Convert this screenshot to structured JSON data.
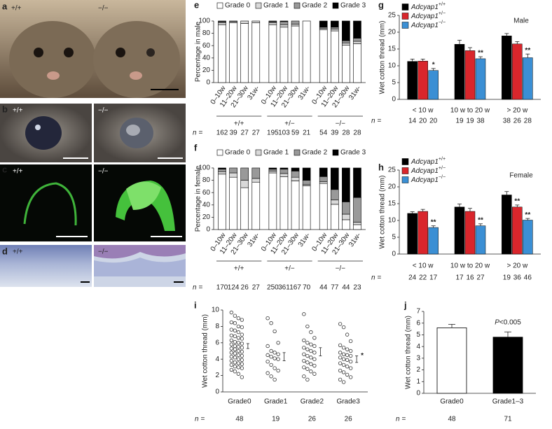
{
  "photos": [
    {
      "letter": "a",
      "labels": [
        "+/+",
        "−/−"
      ]
    },
    {
      "letter": "b",
      "labels": [
        "+/+",
        "−/−"
      ]
    },
    {
      "letter": "c",
      "labels": [
        "+/+",
        "−/−"
      ]
    },
    {
      "letter": "d",
      "labels": [
        "+/+",
        "−/−"
      ]
    }
  ],
  "chart_data": [
    {
      "letter": "e",
      "type": "bar",
      "stacked": true,
      "ylabel": "Percentage in male",
      "categories": [
        "0–10w",
        "11–20w",
        "21–30w",
        "31w-",
        "0–10w",
        "11–20w",
        "21–30w",
        "31w-",
        "0–10w",
        "11–20w",
        "21–30w",
        "31w-"
      ],
      "group_labels": [
        "+/+",
        "+/−",
        "−/−"
      ],
      "n_label": "n =",
      "n": [
        162,
        39,
        27,
        27,
        195,
        103,
        59,
        21,
        54,
        39,
        28,
        28
      ],
      "series": [
        {
          "name": "Grade 0",
          "color": "#ffffff",
          "values": [
            94,
            97,
            96,
            97,
            94,
            90,
            92,
            100,
            86,
            84,
            61,
            63
          ]
        },
        {
          "name": "Grade 1",
          "color": "#d9d9d9",
          "values": [
            3,
            2,
            4,
            3,
            3,
            4,
            3,
            0,
            2,
            3,
            3,
            4
          ]
        },
        {
          "name": "Grade 2",
          "color": "#999999",
          "values": [
            2,
            1,
            0,
            0,
            2,
            5,
            5,
            0,
            2,
            3,
            4,
            5
          ]
        },
        {
          "name": "Grade 3",
          "color": "#000000",
          "values": [
            1,
            0,
            0,
            0,
            1,
            1,
            0,
            0,
            10,
            10,
            32,
            28
          ]
        }
      ],
      "ylim": [
        0,
        100
      ],
      "yticks": [
        0,
        20,
        40,
        60,
        80,
        100
      ]
    },
    {
      "letter": "f",
      "type": "bar",
      "stacked": true,
      "ylabel": "Percentage in female",
      "categories": [
        "0–10w",
        "11–20w",
        "21–30w",
        "31w-",
        "0–10w",
        "11–20w",
        "21–30w",
        "31w-",
        "0–10w",
        "11–20w",
        "21–30w",
        "31w-"
      ],
      "group_labels": [
        "+/+",
        "+/−",
        "−/−"
      ],
      "n_label": "n =",
      "n": [
        170,
        124,
        26,
        27,
        250,
        361,
        167,
        70,
        44,
        77,
        44,
        23
      ],
      "series": [
        {
          "name": "Grade 0",
          "color": "#ffffff",
          "values": [
            90,
            85,
            68,
            77,
            92,
            86,
            79,
            71,
            75,
            41,
            16,
            8
          ]
        },
        {
          "name": "Grade 1",
          "color": "#d9d9d9",
          "values": [
            4,
            7,
            12,
            6,
            3,
            5,
            6,
            2,
            3,
            7,
            9,
            4
          ]
        },
        {
          "name": "Grade 2",
          "color": "#999999",
          "values": [
            4,
            8,
            20,
            17,
            3,
            7,
            10,
            7,
            8,
            17,
            20,
            40
          ]
        },
        {
          "name": "Grade 3",
          "color": "#000000",
          "values": [
            2,
            0,
            0,
            0,
            2,
            2,
            5,
            20,
            14,
            35,
            55,
            48
          ]
        }
      ],
      "ylim": [
        0,
        100
      ],
      "yticks": [
        0,
        20,
        40,
        60,
        80,
        100
      ]
    },
    {
      "letter": "g",
      "type": "bar",
      "title": "Male",
      "ylabel": "Wet cotton thread (mm)",
      "categories": [
        "< 10 w",
        "10 w to 20 w",
        "> 20 w"
      ],
      "n_label": "n =",
      "n": [
        14,
        20,
        20,
        19,
        19,
        38,
        38,
        26,
        28
      ],
      "series": [
        {
          "name": "Adcyap1",
          "superscript": "+/+",
          "color": "#000000",
          "values": [
            11.3,
            16.4,
            18.9
          ],
          "errors": [
            0.7,
            1.2,
            0.7
          ],
          "stars": [
            null,
            null,
            null
          ]
        },
        {
          "name": "Adcyap1",
          "superscript": "+/−",
          "color": "#d9262c",
          "values": [
            11.4,
            14.5,
            16.5
          ],
          "errors": [
            0.6,
            0.9,
            0.7
          ],
          "stars": [
            null,
            null,
            null
          ]
        },
        {
          "name": "Adcyap1",
          "superscript": "−/−",
          "color": "#3b8fd4",
          "values": [
            8.6,
            12.1,
            12.4
          ],
          "errors": [
            0.6,
            0.6,
            1.1
          ],
          "stars": [
            "*",
            "**",
            "**"
          ]
        }
      ],
      "ylim": [
        0,
        25
      ],
      "yticks": [
        0,
        5,
        10,
        15,
        20,
        25
      ]
    },
    {
      "letter": "h",
      "type": "bar",
      "title": "Female",
      "ylabel": "Wet cotton thread (mm)",
      "categories": [
        "< 10 w",
        "10 w to 20 w",
        "> 20 w"
      ],
      "n_label": "n =",
      "n": [
        24,
        22,
        17,
        17,
        16,
        27,
        19,
        36,
        46
      ],
      "series": [
        {
          "name": "Adcyap1",
          "superscript": "+/+",
          "color": "#000000",
          "values": [
            12.1,
            14.0,
            17.6
          ],
          "errors": [
            0.5,
            0.9,
            1.0
          ],
          "stars": [
            null,
            null,
            null
          ]
        },
        {
          "name": "Adcyap1",
          "superscript": "+/−",
          "color": "#d9262c",
          "values": [
            12.7,
            12.7,
            14.0
          ],
          "errors": [
            0.6,
            0.9,
            0.6
          ],
          "stars": [
            null,
            null,
            "**"
          ]
        },
        {
          "name": "Adcyap1",
          "superscript": "−/−",
          "color": "#3b8fd4",
          "values": [
            7.9,
            8.4,
            10.1
          ],
          "errors": [
            0.5,
            0.6,
            0.5
          ],
          "stars": [
            "**",
            "**",
            "**"
          ]
        }
      ],
      "ylim": [
        0,
        25
      ],
      "yticks": [
        0,
        5,
        10,
        15,
        20,
        25
      ]
    },
    {
      "letter": "i",
      "type": "strip",
      "ylabel": "Wet cotton thread (mm)",
      "categories": [
        "Grade0",
        "Grade1",
        "Grade2",
        "Grade3"
      ],
      "n_label": "n =",
      "n": [
        48,
        19,
        26,
        26
      ],
      "values": [
        [
          9.7,
          9.3,
          9.0,
          8.8,
          8.5,
          8.4,
          8.0,
          7.9,
          7.6,
          7.5,
          7.3,
          7.0,
          6.9,
          6.8,
          6.6,
          6.5,
          6.3,
          6.1,
          6.0,
          5.9,
          5.8,
          5.6,
          5.5,
          5.4,
          5.3,
          5.2,
          5.0,
          4.9,
          4.8,
          4.7,
          4.5,
          4.4,
          4.3,
          4.2,
          4.0,
          3.9,
          3.8,
          3.6,
          3.5,
          3.4,
          3.3,
          3.1,
          3.0,
          2.9,
          2.7,
          2.5,
          2.2,
          1.8
        ],
        [
          9.0,
          8.4,
          7.4,
          6.0,
          5.6,
          5.0,
          4.8,
          4.6,
          4.5,
          4.3,
          4.1,
          4.0,
          3.7,
          3.3,
          2.9,
          2.6,
          2.3,
          1.9,
          1.5
        ],
        [
          9.5,
          8.0,
          7.3,
          6.6,
          6.3,
          6.0,
          5.8,
          5.6,
          5.4,
          5.2,
          5.0,
          4.8,
          4.6,
          4.4,
          4.2,
          4.0,
          3.8,
          3.6,
          3.4,
          3.2,
          3.0,
          2.8,
          2.5,
          2.2,
          1.9,
          1.5
        ],
        [
          8.3,
          7.9,
          7.0,
          6.2,
          5.7,
          5.4,
          5.2,
          5.0,
          4.8,
          4.6,
          4.5,
          4.4,
          4.2,
          4.0,
          3.9,
          3.7,
          3.5,
          3.3,
          3.1,
          2.9,
          2.6,
          2.4,
          2.1,
          1.8,
          1.5,
          1.2
        ]
      ],
      "means": [
        5.6,
        4.3,
        4.9,
        4.0
      ],
      "errors": [
        0.3,
        0.5,
        0.5,
        0.4
      ],
      "stars": [
        null,
        null,
        null,
        "*"
      ],
      "ylim": [
        0,
        10
      ],
      "yticks": [
        0,
        2,
        4,
        6,
        8,
        10
      ]
    },
    {
      "letter": "j",
      "type": "bar",
      "ylabel": "Wet cotton thread (mm)",
      "categories": [
        "Grade0",
        "Grade1–3"
      ],
      "values": [
        5.6,
        4.8
      ],
      "errors": [
        0.3,
        0.45
      ],
      "colors": [
        "#ffffff",
        "#000000"
      ],
      "annotation": {
        "italic": "P",
        "text": "<0.005"
      },
      "n_label": "n =",
      "n": [
        48,
        71
      ],
      "ylim": [
        0,
        7
      ],
      "yticks": [
        0,
        1,
        2,
        3,
        4,
        5,
        6,
        7
      ]
    }
  ]
}
